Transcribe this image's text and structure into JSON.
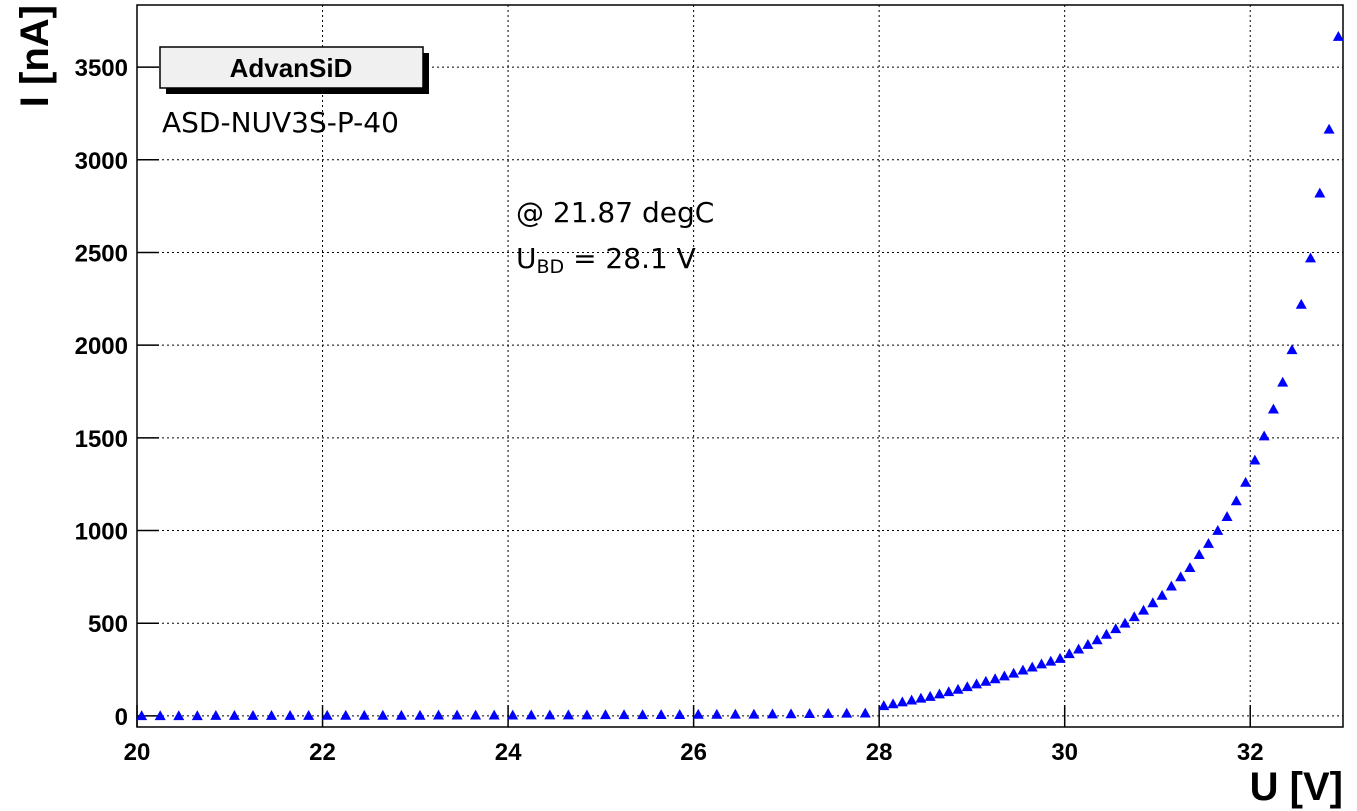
{
  "chart_data": {
    "type": "scatter",
    "x_label": "U [V]",
    "y_label": "I [nA]",
    "box_label": "AdvanSiD",
    "device": "ASD-NUV3S-P-40",
    "temperature": "@ 21.87 degC",
    "breakdown": {
      "main": "U",
      "sub": "BD",
      "rest": " = 28.1 V"
    },
    "xlim": [
      20,
      33
    ],
    "ylim": [
      -60,
      3835
    ],
    "xticks": [
      20,
      22,
      24,
      26,
      28,
      30,
      32
    ],
    "yticks": [
      0,
      500,
      1000,
      1500,
      2000,
      2500,
      3000,
      3500
    ],
    "grid": true,
    "series": [
      {
        "color": "#0000ff",
        "x": [
          20.05,
          20.25,
          20.45,
          20.65,
          20.85,
          21.05,
          21.25,
          21.45,
          21.65,
          21.85,
          22.05,
          22.25,
          22.45,
          22.65,
          22.85,
          23.05,
          23.25,
          23.45,
          23.65,
          23.85,
          24.05,
          24.25,
          24.45,
          24.65,
          24.85,
          25.05,
          25.25,
          25.45,
          25.65,
          25.85,
          26.05,
          26.25,
          26.45,
          26.65,
          26.85,
          27.05,
          27.25,
          27.45,
          27.65,
          27.85,
          28.05,
          28.15,
          28.25,
          28.35,
          28.45,
          28.55,
          28.65,
          28.75,
          28.85,
          28.95,
          29.05,
          29.15,
          29.25,
          29.35,
          29.45,
          29.55,
          29.65,
          29.75,
          29.85,
          29.95,
          30.05,
          30.15,
          30.25,
          30.35,
          30.45,
          30.55,
          30.65,
          30.75,
          30.85,
          30.95,
          31.05,
          31.15,
          31.25,
          31.35,
          31.45,
          31.55,
          31.65,
          31.75,
          31.85,
          31.95,
          32.05,
          32.15,
          32.25,
          32.35,
          32.45,
          32.55,
          32.65,
          32.75,
          32.85,
          32.95
        ],
        "values": [
          1,
          1,
          1,
          1,
          2,
          2,
          2,
          2,
          2,
          2,
          3,
          3,
          3,
          3,
          3,
          3,
          4,
          4,
          4,
          4,
          4,
          5,
          5,
          5,
          5,
          6,
          6,
          6,
          7,
          7,
          8,
          8,
          9,
          9,
          10,
          11,
          12,
          13,
          14,
          15,
          55,
          65,
          75,
          85,
          95,
          105,
          118,
          130,
          143,
          157,
          172,
          186,
          200,
          215,
          230,
          247,
          263,
          280,
          295,
          310,
          335,
          360,
          385,
          410,
          440,
          470,
          500,
          535,
          570,
          610,
          650,
          700,
          750,
          800,
          870,
          930,
          1000,
          1075,
          1160,
          1260,
          1380,
          1510,
          1655,
          1800,
          1975,
          2220,
          2470,
          2820,
          3165,
          3665
        ]
      }
    ]
  }
}
